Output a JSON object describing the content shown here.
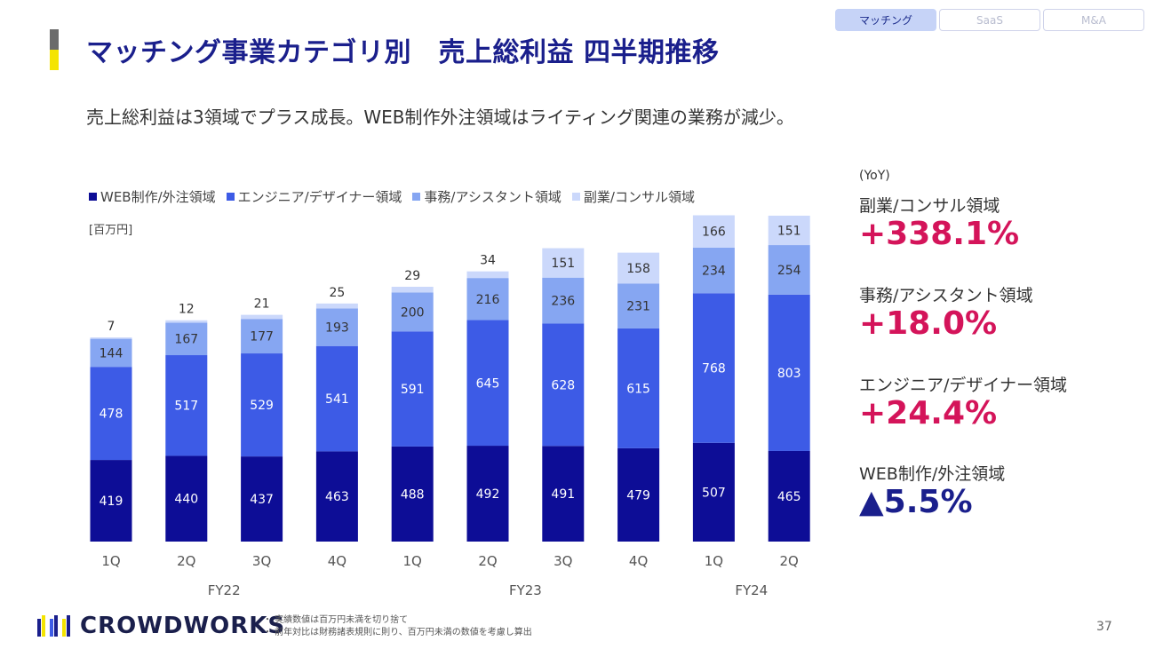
{
  "tabs": [
    {
      "label": "マッチング",
      "active": true
    },
    {
      "label": "SaaS",
      "active": false
    },
    {
      "label": "M&A",
      "active": false
    }
  ],
  "title": "マッチング事業カテゴリ別　売上総利益 四半期推移",
  "subtitle": "売上総利益は3領域でプラス成長。WEB制作外注領域はライティング関連の業務が減少。",
  "legend": [
    {
      "label": "WEB制作/外注領域",
      "color": "#0d0d96"
    },
    {
      "label": "エンジニア/デザイナー領域",
      "color": "#3d5be6"
    },
    {
      "label": "事務/アシスタント領域",
      "color": "#86a6f2"
    },
    {
      "label": "副業/コンサル領域",
      "color": "#cbd8fb"
    }
  ],
  "unit": "[百万円]",
  "chart_data": {
    "type": "bar",
    "stacked": true,
    "categories": [
      "1Q",
      "2Q",
      "3Q",
      "4Q",
      "1Q",
      "2Q",
      "3Q",
      "4Q",
      "1Q",
      "2Q"
    ],
    "groups": [
      {
        "label": "FY22",
        "from": 0,
        "to": 3
      },
      {
        "label": "FY23",
        "from": 4,
        "to": 7
      },
      {
        "label": "FY24",
        "from": 8,
        "to": 9
      }
    ],
    "series": [
      {
        "name": "WEB制作/外注領域",
        "color": "#0d0d96",
        "values": [
          419,
          440,
          437,
          463,
          488,
          492,
          491,
          479,
          507,
          465
        ]
      },
      {
        "name": "エンジニア/デザイナー領域",
        "color": "#3d5be6",
        "values": [
          478,
          517,
          529,
          541,
          591,
          645,
          628,
          615,
          768,
          803
        ]
      },
      {
        "name": "事務/アシスタント領域",
        "color": "#86a6f2",
        "values": [
          144,
          167,
          177,
          193,
          200,
          216,
          236,
          231,
          234,
          254
        ]
      },
      {
        "name": "副業/コンサル領域",
        "color": "#cbd8fb",
        "values": [
          7,
          12,
          21,
          25,
          29,
          34,
          151,
          158,
          166,
          151
        ]
      }
    ],
    "ylim": [
      0,
      1700
    ],
    "ylabel": "[百万円]",
    "grid": false
  },
  "yoy": {
    "heading": "(YoY)",
    "items": [
      {
        "label": "副業/コンサル領域",
        "value": "+338.1%",
        "negative": false
      },
      {
        "label": "事務/アシスタント領域",
        "value": "+18.0%",
        "negative": false
      },
      {
        "label": "エンジニア/デザイナー領域",
        "value": "+24.4%",
        "negative": false
      },
      {
        "label": "WEB制作/外注領域",
        "value": "▲5.5%",
        "negative": true
      }
    ]
  },
  "logo_text": "CROWDWORKS",
  "notes": [
    "・ 実績数値は百万円未満を切り捨て",
    "・ 前年対比は財務諸表規則に則り、百万円未満の数値を考慮し算出"
  ],
  "page_number": "37"
}
